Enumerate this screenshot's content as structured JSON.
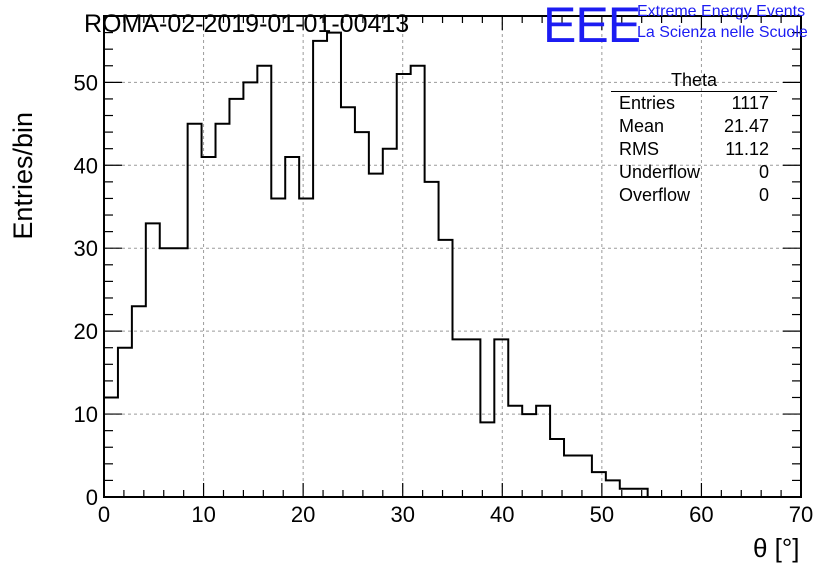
{
  "title": "ROMA-02-2019-01-01-00413",
  "logo": {
    "mark": "EEE",
    "line1": "Extreme Energy Events",
    "line2": "La Scienza nelle Scuole",
    "color": "#1c1cf2"
  },
  "stats": {
    "title": "Theta",
    "rows": [
      {
        "label": "Entries",
        "value": "1117"
      },
      {
        "label": "Mean",
        "value": "21.47"
      },
      {
        "label": "RMS",
        "value": "11.12"
      },
      {
        "label": "Underflow",
        "value": "0"
      },
      {
        "label": "Overflow",
        "value": "0"
      }
    ]
  },
  "chart_data": {
    "type": "bar",
    "style": "step-histogram",
    "xlabel": "θ [°]",
    "ylabel": "Entries/bin",
    "xlim": [
      0,
      70
    ],
    "ylim": [
      0,
      58
    ],
    "x_ticks": [
      0,
      10,
      20,
      30,
      40,
      50,
      60,
      70
    ],
    "y_ticks": [
      0,
      10,
      20,
      30,
      40,
      50
    ],
    "grid": true,
    "bin_width": 1.4,
    "bin_start": 0,
    "values": [
      12,
      18,
      23,
      33,
      30,
      30,
      45,
      41,
      45,
      48,
      50,
      52,
      36,
      41,
      36,
      55,
      56,
      47,
      44,
      39,
      42,
      51,
      52,
      38,
      31,
      19,
      19,
      9,
      19,
      11,
      10,
      11,
      7,
      5,
      5,
      3,
      2,
      1,
      1,
      0
    ],
    "line_color": "#000000",
    "grid_color": "#9b9b9b"
  }
}
